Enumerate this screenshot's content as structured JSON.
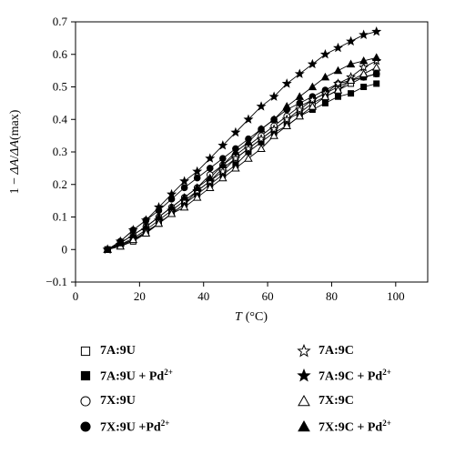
{
  "chart_data": {
    "type": "scatter",
    "title": "",
    "xlabel": "T (°C)",
    "xlabel_var": "T",
    "xlabel_unit": "(°C)",
    "ylabel": "1 − ΔA/ΔA(max)",
    "ylabel_parts": [
      "1 − ",
      "ΔA",
      "/",
      "ΔA",
      "(max)"
    ],
    "xlim": [
      0,
      110
    ],
    "ylim": [
      -0.1,
      0.7
    ],
    "xticks": [
      "0",
      "20",
      "40",
      "60",
      "80",
      "100"
    ],
    "yticks": [
      "−0.1",
      "0",
      "0.1",
      "0.2",
      "0.3",
      "0.4",
      "0.5",
      "0.6",
      "0.7"
    ],
    "xtick_values": [
      0,
      20,
      40,
      60,
      80,
      100
    ],
    "ytick_values": [
      -0.1,
      0,
      0.1,
      0.2,
      0.3,
      0.4,
      0.5,
      0.6,
      0.7
    ],
    "legend_position": "below",
    "series": [
      {
        "name": "7A:9U",
        "marker": "square-open",
        "x": [
          10,
          14,
          18,
          22,
          26,
          30,
          34,
          38,
          42,
          46,
          50,
          54,
          58,
          62,
          66,
          70,
          74,
          78,
          82,
          86,
          90,
          94
        ],
        "y": [
          0,
          0.01,
          0.025,
          0.05,
          0.08,
          0.11,
          0.14,
          0.18,
          0.21,
          0.25,
          0.28,
          0.31,
          0.34,
          0.37,
          0.4,
          0.42,
          0.45,
          0.47,
          0.49,
          0.51,
          0.53,
          0.54
        ]
      },
      {
        "name": "7A:9U + Pd2+",
        "marker": "square-filled",
        "x": [
          10,
          14,
          18,
          22,
          26,
          30,
          34,
          38,
          42,
          46,
          50,
          54,
          58,
          62,
          66,
          70,
          74,
          78,
          82,
          86,
          90,
          94
        ],
        "y": [
          0,
          0.015,
          0.03,
          0.055,
          0.08,
          0.11,
          0.14,
          0.17,
          0.2,
          0.23,
          0.26,
          0.3,
          0.33,
          0.36,
          0.38,
          0.41,
          0.43,
          0.45,
          0.47,
          0.48,
          0.5,
          0.51
        ]
      },
      {
        "name": "7X:9U",
        "marker": "circle-open",
        "x": [
          10,
          14,
          18,
          22,
          26,
          30,
          34,
          38,
          42,
          46,
          50,
          54,
          58,
          62,
          66,
          70,
          74,
          78,
          82,
          86,
          90,
          94
        ],
        "y": [
          0,
          0.02,
          0.045,
          0.07,
          0.1,
          0.13,
          0.16,
          0.19,
          0.23,
          0.26,
          0.29,
          0.32,
          0.35,
          0.38,
          0.41,
          0.44,
          0.46,
          0.48,
          0.5,
          0.52,
          0.53,
          0.54
        ]
      },
      {
        "name": "7X:9U +Pd2+",
        "marker": "circle-filled",
        "x": [
          10,
          14,
          18,
          22,
          26,
          30,
          34,
          38,
          42,
          46,
          50,
          54,
          58,
          62,
          66,
          70,
          74,
          78,
          82,
          86,
          90,
          94
        ],
        "y": [
          0,
          0.025,
          0.06,
          0.09,
          0.12,
          0.155,
          0.19,
          0.22,
          0.25,
          0.28,
          0.31,
          0.34,
          0.37,
          0.4,
          0.43,
          0.45,
          0.47,
          0.49,
          0.51,
          0.52,
          0.53,
          0.54
        ]
      },
      {
        "name": "7A:9C",
        "marker": "star-open",
        "x": [
          10,
          14,
          18,
          22,
          26,
          30,
          34,
          38,
          42,
          46,
          50,
          54,
          58,
          62,
          66,
          70,
          74,
          78,
          82,
          86,
          90,
          94
        ],
        "y": [
          0,
          0.015,
          0.035,
          0.06,
          0.09,
          0.12,
          0.15,
          0.18,
          0.21,
          0.24,
          0.28,
          0.31,
          0.34,
          0.37,
          0.4,
          0.43,
          0.46,
          0.48,
          0.51,
          0.53,
          0.56,
          0.58
        ]
      },
      {
        "name": "7A:9C + Pd2+",
        "marker": "star-filled",
        "x": [
          10,
          14,
          18,
          22,
          26,
          30,
          34,
          38,
          42,
          46,
          50,
          54,
          58,
          62,
          66,
          70,
          74,
          78,
          82,
          86,
          90,
          94
        ],
        "y": [
          0,
          0.025,
          0.06,
          0.09,
          0.13,
          0.17,
          0.21,
          0.24,
          0.28,
          0.32,
          0.36,
          0.4,
          0.44,
          0.47,
          0.51,
          0.54,
          0.57,
          0.6,
          0.62,
          0.64,
          0.66,
          0.67
        ]
      },
      {
        "name": "7X:9C",
        "marker": "triangle-open",
        "x": [
          10,
          14,
          18,
          22,
          26,
          30,
          34,
          38,
          42,
          46,
          50,
          54,
          58,
          62,
          66,
          70,
          74,
          78,
          82,
          86,
          90,
          94
        ],
        "y": [
          0,
          0.01,
          0.03,
          0.05,
          0.08,
          0.11,
          0.13,
          0.16,
          0.19,
          0.22,
          0.25,
          0.28,
          0.31,
          0.35,
          0.38,
          0.41,
          0.44,
          0.47,
          0.49,
          0.52,
          0.54,
          0.56
        ]
      },
      {
        "name": "7X:9C + Pd2+",
        "marker": "triangle-filled",
        "x": [
          10,
          14,
          18,
          22,
          26,
          30,
          34,
          38,
          42,
          46,
          50,
          54,
          58,
          62,
          66,
          70,
          74,
          78,
          82,
          86,
          90,
          94
        ],
        "y": [
          0,
          0.02,
          0.045,
          0.07,
          0.1,
          0.13,
          0.16,
          0.19,
          0.22,
          0.26,
          0.3,
          0.33,
          0.37,
          0.4,
          0.44,
          0.47,
          0.5,
          0.53,
          0.55,
          0.57,
          0.58,
          0.59
        ]
      }
    ],
    "legend": [
      {
        "marker": "square-open",
        "text": "7A:9U",
        "sup": ""
      },
      {
        "marker": "square-filled",
        "text": "7A:9U + Pd",
        "sup": "2+"
      },
      {
        "marker": "circle-open",
        "text": "7X:9U",
        "sup": ""
      },
      {
        "marker": "circle-filled",
        "text": "7X:9U +Pd",
        "sup": "2+"
      },
      {
        "marker": "star-open",
        "text": "7A:9C",
        "sup": ""
      },
      {
        "marker": "star-filled",
        "text": "7A:9C + Pd",
        "sup": "2+"
      },
      {
        "marker": "triangle-open",
        "text": "7X:9C",
        "sup": ""
      },
      {
        "marker": "triangle-filled",
        "text": "7X:9C + Pd",
        "sup": "2+"
      }
    ]
  }
}
